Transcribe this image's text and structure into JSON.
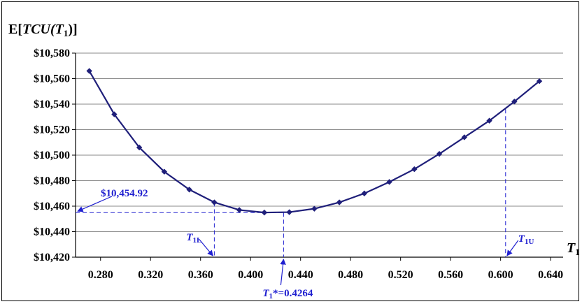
{
  "chart_data": {
    "type": "line",
    "ylabel_parts": {
      "prefix": "E[",
      "main": "TCU",
      "open": "(",
      "var": "T",
      "sub": "1",
      "close": ")]"
    },
    "xlabel_parts": {
      "var": "T",
      "sub": "1"
    },
    "xlim": [
      0.26,
      0.65
    ],
    "ylim": [
      10420,
      10580
    ],
    "x_ticks": [
      0.28,
      0.32,
      0.36,
      0.4,
      0.44,
      0.48,
      0.52,
      0.56,
      0.6,
      0.64
    ],
    "x_tick_labels": [
      "0.280",
      "0.320",
      "0.360",
      "0.400",
      "0.440",
      "0.480",
      "0.520",
      "0.560",
      "0.600",
      "0.640"
    ],
    "y_ticks": [
      10420,
      10440,
      10460,
      10480,
      10500,
      10520,
      10540,
      10560,
      10580
    ],
    "y_tick_labels": [
      "$10,420",
      "$10,440",
      "$10,460",
      "$10,480",
      "$10,500",
      "$10,520",
      "$10,540",
      "$10,560",
      "$10,580"
    ],
    "grid": "horizontal",
    "series": [
      {
        "color": "#1f1f7a",
        "marker": "diamond",
        "x": [
          0.271,
          0.291,
          0.311,
          0.331,
          0.351,
          0.371,
          0.391,
          0.411,
          0.431,
          0.451,
          0.471,
          0.491,
          0.511,
          0.531,
          0.551,
          0.571,
          0.591,
          0.611,
          0.631
        ],
        "y": [
          10566,
          10532,
          10506,
          10487,
          10473,
          10463,
          10457,
          10455,
          10455.3,
          10458,
          10463,
          10470,
          10479,
          10489,
          10501,
          10514,
          10527,
          10542,
          10558
        ]
      }
    ],
    "annotations": {
      "color": "#2020d0",
      "min_cost_label": "$10,454.92",
      "min_cost_value": 10454.92,
      "opt_x": 0.4264,
      "opt_label_parts": {
        "var": "T",
        "sub": "1",
        "rest": "*=0.4264"
      },
      "lower_x": 0.371,
      "lower_y": 10463,
      "lower_label_parts": {
        "var": "T",
        "sub": "1L"
      },
      "upper_x": 0.604,
      "upper_y": 10536,
      "upper_label_parts": {
        "var": "T",
        "sub": "1U"
      }
    }
  }
}
